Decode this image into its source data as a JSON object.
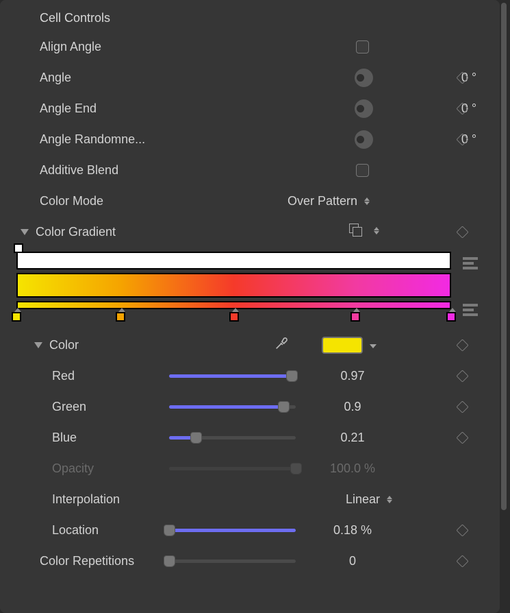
{
  "section_title": "Cell Controls",
  "params": {
    "align_angle": {
      "label": "Align Angle",
      "checked": false
    },
    "angle": {
      "label": "Angle",
      "value": "0",
      "unit": "°"
    },
    "angle_end": {
      "label": "Angle End",
      "value": "0",
      "unit": "°"
    },
    "angle_randomness": {
      "label": "Angle Randomne...",
      "value": "0",
      "unit": "°"
    },
    "additive_blend": {
      "label": "Additive Blend",
      "checked": false
    },
    "color_mode": {
      "label": "Color Mode",
      "value": "Over Pattern"
    },
    "color_gradient": {
      "label": "Color Gradient"
    },
    "color": {
      "label": "Color",
      "swatch_color": "#f5e400"
    },
    "red": {
      "label": "Red",
      "value": "0.97",
      "fill_pct": 97
    },
    "green": {
      "label": "Green",
      "value": "0.9",
      "fill_pct": 90
    },
    "blue": {
      "label": "Blue",
      "value": "0.21",
      "fill_pct": 21
    },
    "opacity": {
      "label": "Opacity",
      "value": "100.0 %",
      "fill_pct": 100
    },
    "interpolation": {
      "label": "Interpolation",
      "value": "Linear"
    },
    "location": {
      "label": "Location",
      "value": "0.18 %",
      "fill_pct": 0.18
    },
    "color_repetitions": {
      "label": "Color Repetitions",
      "value": "0",
      "fill_pct": 0
    }
  },
  "gradient": {
    "opacity_track_color": "#ffffff",
    "css": "linear-gradient(90deg, #f5e400 0%, #f5a300 24%, #f53a2a 50%, #f23aa0 78%, #f22ae3 100%)",
    "stops": [
      {
        "pct": 0,
        "color": "#f5e400"
      },
      {
        "pct": 24,
        "color": "#f5a300"
      },
      {
        "pct": 50,
        "color": "#f53a2a"
      },
      {
        "pct": 78,
        "color": "#f23aa0"
      },
      {
        "pct": 100,
        "color": "#f22ae3"
      }
    ]
  },
  "colors": {
    "panel_bg": "#363636",
    "slider_fill": "#6d6df2"
  }
}
